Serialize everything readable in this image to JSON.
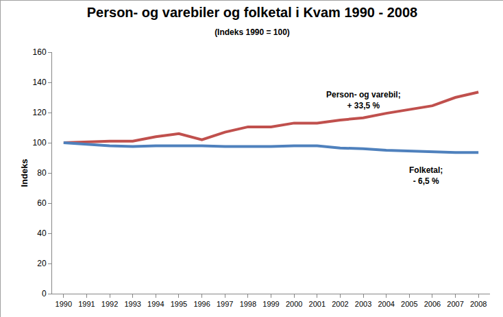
{
  "chart_data": {
    "type": "line",
    "title": "Person- og varebiler og folketal i Kvam 1990 - 2008",
    "subtitle": "(Indeks 1990 = 100)",
    "y_label": "Indeks",
    "categories": [
      "1990",
      "1991",
      "1992",
      "1993",
      "1994",
      "1995",
      "1996",
      "1997",
      "1998",
      "1999",
      "2000",
      "2001",
      "2002",
      "2003",
      "2004",
      "2005",
      "2006",
      "2007",
      "2008"
    ],
    "series": [
      {
        "color": "#C0504D",
        "values": [
          100,
          100.5,
          101,
          101,
          104,
          106,
          102,
          107,
          110.5,
          110.5,
          113,
          113,
          115,
          116.5,
          119.5,
          122,
          124.5,
          130,
          133.5
        ]
      },
      {
        "color": "#4F81BD",
        "values": [
          100,
          99,
          98,
          97.5,
          98,
          98,
          98,
          97.5,
          97.5,
          97.5,
          98,
          98,
          96.5,
          96,
          95,
          94.5,
          94,
          93.5,
          93.5
        ]
      }
    ],
    "annotations": [
      [
        "Person- og varebil;",
        "+ 33,5 %"
      ],
      [
        "Folketal;",
        "- 6,5 %"
      ]
    ],
    "ylim": [
      0,
      160
    ],
    "yticks": [
      0,
      20,
      40,
      60,
      80,
      100,
      120,
      140,
      160
    ],
    "grid": false
  }
}
